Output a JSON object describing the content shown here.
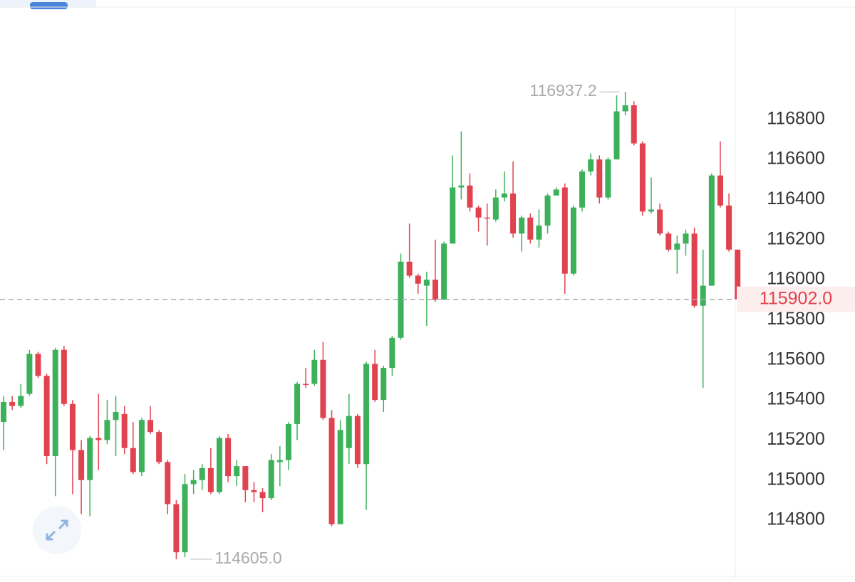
{
  "chart_data": {
    "type": "candlestick",
    "up_color": "#3cb15a",
    "down_color": "#e0434f",
    "ylim": [
      114520,
      117360
    ],
    "yticks": [
      114800,
      115000,
      115200,
      115400,
      115600,
      115800,
      116000,
      116200,
      116400,
      116600,
      116800
    ],
    "high_marker": {
      "value": 116937.2,
      "label": "116937.2"
    },
    "low_marker": {
      "value": 114605,
      "label": "114605.0"
    },
    "last_price": {
      "value": 115902,
      "label": "115902.0"
    },
    "open": [
      115290,
      115390,
      115370,
      115430,
      115630,
      115520,
      115120,
      115650,
      115380,
      115150,
      115000,
      115210,
      115200,
      115300,
      115330,
      115160,
      115040,
      115300,
      115240,
      115090,
      114880,
      114640,
      114980,
      115000,
      115060,
      114940,
      115210,
      115020,
      115070,
      114950,
      114940,
      114910,
      115090,
      115100,
      115280,
      115480,
      115480,
      115600,
      115310,
      114780,
      115160,
      115320,
      115080,
      115580,
      115400,
      115560,
      115710,
      116090,
      116020,
      115970,
      116000,
      115900,
      116180,
      116460,
      116470,
      116360,
      116310,
      116300,
      116410,
      116430,
      116230,
      116310,
      116200,
      116270,
      116420,
      116460,
      116030,
      116360,
      116540,
      116600,
      116410,
      116600,
      116840,
      116870,
      116680,
      116340,
      116350,
      116230,
      116150,
      116180,
      116230,
      115870,
      115970,
      116520,
      116370,
      116150
    ],
    "high": [
      115420,
      115420,
      115480,
      115650,
      115640,
      115530,
      115660,
      115670,
      115400,
      115200,
      115220,
      115430,
      115400,
      115420,
      115370,
      115290,
      115310,
      115370,
      115250,
      115100,
      114900,
      115030,
      115050,
      115080,
      115160,
      115220,
      115230,
      115100,
      115070,
      114990,
      114960,
      115130,
      115170,
      115290,
      115490,
      115560,
      115650,
      115690,
      115350,
      115300,
      115430,
      115330,
      115590,
      115650,
      115570,
      115720,
      116130,
      116280,
      116030,
      116040,
      116200,
      116190,
      116620,
      116740,
      116530,
      116370,
      116380,
      116450,
      116540,
      116590,
      116320,
      116330,
      116350,
      116430,
      116460,
      116480,
      116370,
      116550,
      116630,
      116620,
      116610,
      116920,
      116937.2,
      116890,
      116690,
      116510,
      116380,
      116240,
      116220,
      116250,
      116260,
      116150,
      116530,
      116690,
      116430,
      116150
    ],
    "low": [
      115150,
      115350,
      115360,
      115420,
      115510,
      115080,
      114920,
      115370,
      114930,
      114830,
      114820,
      115050,
      115180,
      115120,
      115130,
      115030,
      115020,
      115230,
      115080,
      114830,
      114605,
      114615,
      114930,
      114950,
      114930,
      114930,
      114990,
      114970,
      114890,
      114890,
      114840,
      114900,
      114970,
      115050,
      115200,
      115460,
      115470,
      115300,
      114770,
      114780,
      115080,
      115060,
      114850,
      115390,
      115340,
      115520,
      115700,
      116010,
      115930,
      115770,
      115890,
      115900,
      116180,
      116400,
      116340,
      116240,
      116170,
      116290,
      116390,
      116210,
      116140,
      116180,
      116160,
      116230,
      116420,
      115930,
      116020,
      116340,
      116520,
      116380,
      116400,
      116600,
      116820,
      116670,
      116320,
      116330,
      116220,
      116140,
      116030,
      116120,
      115860,
      115460,
      115970,
      116360,
      116140,
      115880
    ],
    "close": [
      115390,
      115370,
      115420,
      115630,
      115520,
      115120,
      115650,
      115380,
      115150,
      115000,
      115210,
      115200,
      115300,
      115340,
      115160,
      115040,
      115300,
      115240,
      115090,
      114880,
      114640,
      114980,
      115000,
      115060,
      114940,
      115210,
      115020,
      115070,
      114950,
      114940,
      114910,
      115100,
      115100,
      115280,
      115480,
      115475,
      115600,
      115310,
      114780,
      115250,
      115320,
      115080,
      115580,
      115400,
      115560,
      115710,
      116090,
      116020,
      115980,
      116000,
      115900,
      116180,
      116460,
      116470,
      116360,
      116310,
      116305,
      116410,
      116430,
      116230,
      116310,
      116200,
      116270,
      116420,
      116450,
      116030,
      116360,
      116540,
      116600,
      116410,
      116600,
      116840,
      116870,
      116680,
      116340,
      116350,
      116230,
      116150,
      116180,
      116230,
      115870,
      115970,
      116520,
      116370,
      116150,
      115902
    ]
  }
}
